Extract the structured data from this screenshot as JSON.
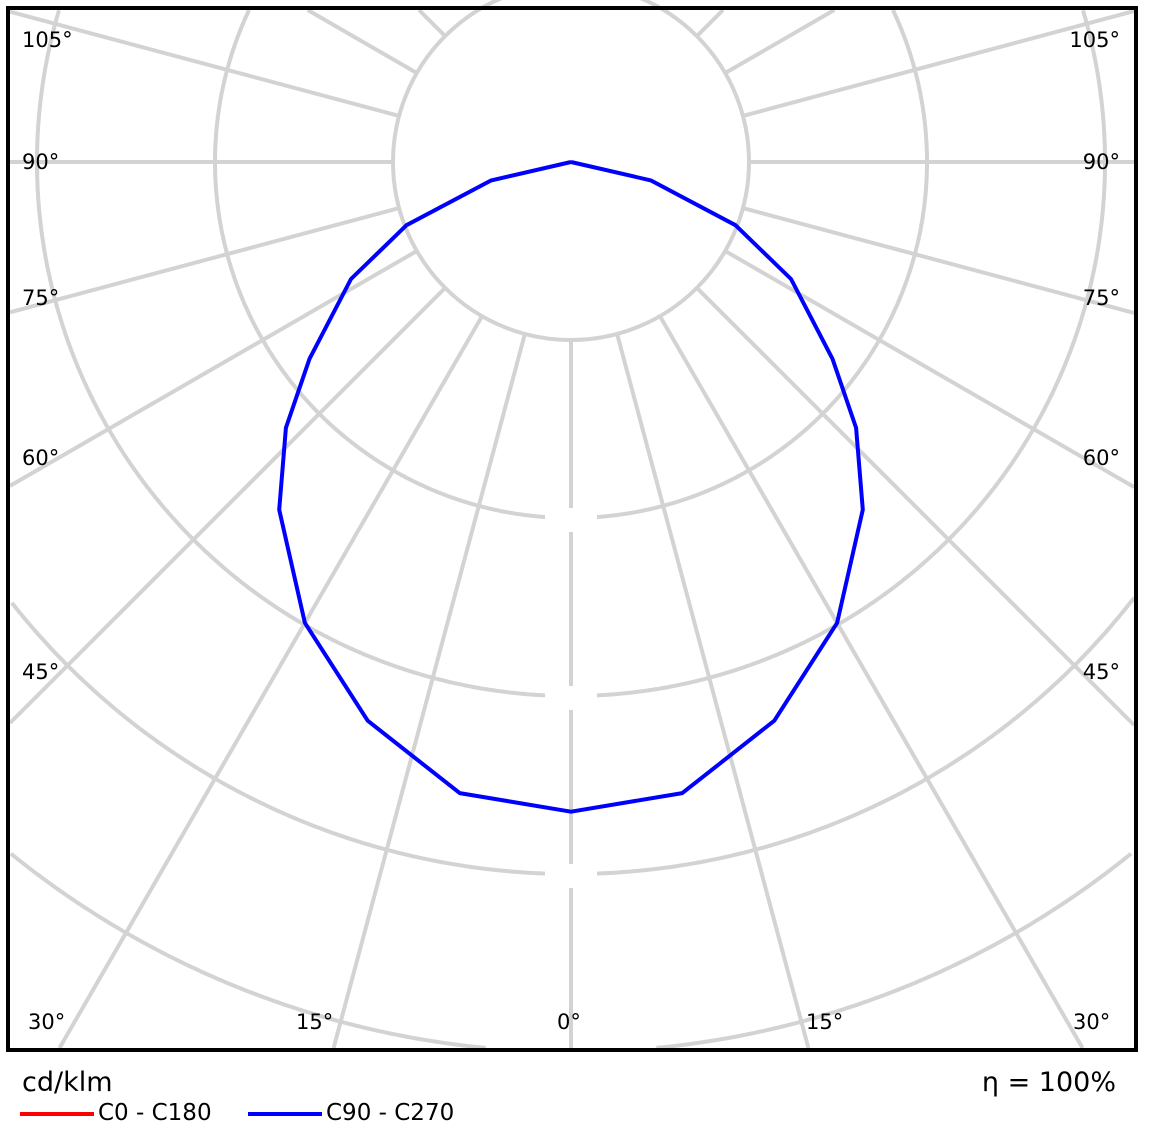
{
  "chart_data": {
    "type": "polar",
    "unit_label": "cd/klm",
    "efficiency_label": "η = 100%",
    "angle_labels": {
      "left": [
        "105°",
        "90°",
        "75°",
        "60°",
        "45°"
      ],
      "bottom": [
        "30°",
        "15°",
        "0°",
        "15°",
        "30°"
      ],
      "right": [
        "105°",
        "90°",
        "75°",
        "60°",
        "45°"
      ]
    },
    "angle_grid_step_deg": 15,
    "ring_count": 6,
    "gamma_deg": [
      0,
      10,
      20,
      30,
      40,
      47,
      53,
      62,
      69,
      77,
      90
    ],
    "series": [
      {
        "name": "C0 - C180",
        "color": "#ff0000",
        "values": [
          3.65,
          3.6,
          3.34,
          2.99,
          2.55,
          2.19,
          1.84,
          1.4,
          0.99,
          0.46,
          0
        ]
      },
      {
        "name": "C90 - C270",
        "color": "#0000ff",
        "values": [
          3.65,
          3.6,
          3.34,
          2.99,
          2.55,
          2.19,
          1.84,
          1.4,
          0.99,
          0.46,
          0
        ]
      }
    ],
    "grid_color": "#d3d3d3"
  }
}
